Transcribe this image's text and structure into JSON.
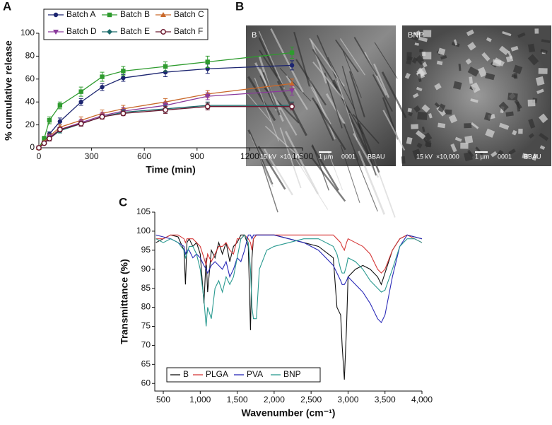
{
  "panel_labels": [
    "A",
    "B",
    "C"
  ],
  "images": [
    {
      "label": "B",
      "scale_text": [
        "15 kV",
        "×10,000",
        "1 µm",
        "0001",
        "BBAU"
      ]
    },
    {
      "label": "BNP",
      "scale_text": [
        "15 kV",
        "×10,000",
        "1 µm",
        "0001",
        "BBAU"
      ]
    }
  ],
  "chart_data": [
    {
      "type": "line",
      "x_label": "Time (min)",
      "y_label": "% cumulative release",
      "x": [
        0,
        30,
        60,
        120,
        240,
        360,
        480,
        720,
        960,
        1440
      ],
      "xlim": [
        0,
        1500
      ],
      "xticks": [
        0,
        300,
        600,
        900,
        1200,
        {
          "value": 1500,
          "label": "1,500"
        }
      ],
      "ylim": [
        0,
        100
      ],
      "yticks": [
        0,
        20,
        40,
        60,
        80,
        100
      ],
      "legend": "top-left",
      "series": [
        {
          "name": "Batch A",
          "color": "#1c2570",
          "marker": "circle",
          "values": [
            0,
            5,
            12,
            23,
            40,
            53,
            61,
            66,
            69,
            72
          ],
          "errors": [
            0,
            1,
            2,
            3,
            3,
            3,
            3,
            4,
            4,
            4
          ]
        },
        {
          "name": "Batch B",
          "color": "#2e9b2e",
          "marker": "square",
          "values": [
            0,
            8,
            24,
            37,
            49,
            62,
            67,
            71,
            75,
            83
          ],
          "errors": [
            0,
            2,
            3,
            3,
            4,
            4,
            4,
            4,
            5,
            5
          ]
        },
        {
          "name": "Batch C",
          "color": "#c9692a",
          "marker": "triangle-up",
          "values": [
            0,
            5,
            10,
            18,
            24,
            30,
            34,
            40,
            47,
            56
          ],
          "errors": [
            0,
            1,
            2,
            2,
            3,
            3,
            3,
            3,
            3,
            4
          ]
        },
        {
          "name": "Batch D",
          "color": "#8a3a9c",
          "marker": "triangle-down",
          "values": [
            0,
            4,
            9,
            16,
            22,
            28,
            32,
            37,
            45,
            50
          ],
          "errors": [
            0,
            1,
            2,
            2,
            3,
            3,
            3,
            3,
            3,
            4
          ]
        },
        {
          "name": "Batch E",
          "color": "#1a6a6a",
          "marker": "diamond",
          "values": [
            0,
            4,
            8,
            15,
            21,
            27,
            31,
            34,
            37,
            37
          ],
          "errors": [
            0,
            1,
            2,
            2,
            2,
            2,
            2,
            3,
            3,
            3
          ]
        },
        {
          "name": "Batch F",
          "color": "#6b1a30",
          "marker": "open-circle",
          "values": [
            0,
            4,
            8,
            16,
            21,
            27,
            30,
            33,
            36,
            36
          ],
          "errors": [
            0,
            1,
            2,
            2,
            2,
            2,
            2,
            3,
            3,
            3
          ]
        }
      ]
    },
    {
      "type": "line",
      "x_label": "Wavenumber (cm⁻¹)",
      "y_label": "Transmittance (%)",
      "x": [
        400,
        500,
        600,
        700,
        780,
        800,
        820,
        850,
        900,
        950,
        1000,
        1050,
        1080,
        1100,
        1150,
        1200,
        1250,
        1300,
        1350,
        1400,
        1450,
        1500,
        1550,
        1600,
        1650,
        1680,
        1700,
        1720,
        1760,
        1800,
        1900,
        2000,
        2200,
        2400,
        2600,
        2800,
        2850,
        2900,
        2920,
        2950,
        2980,
        3000,
        3100,
        3200,
        3300,
        3400,
        3450,
        3500,
        3600,
        3700,
        3800,
        3900,
        4000
      ],
      "xlim": [
        385,
        4000
      ],
      "xticks": [
        500,
        {
          "value": 1000,
          "label": "1,000"
        },
        {
          "value": 1500,
          "label": "1,500"
        },
        {
          "value": 2000,
          "label": "2,000"
        },
        {
          "value": 2500,
          "label": "2,500"
        },
        {
          "value": 3000,
          "label": "3,000"
        },
        {
          "value": 3500,
          "label": "3,500"
        },
        {
          "value": 4000,
          "label": "4,000"
        }
      ],
      "ylim": [
        58,
        105
      ],
      "yticks": [
        60,
        65,
        70,
        75,
        80,
        85,
        90,
        95,
        100,
        105
      ],
      "legend": "bottom-left",
      "series": [
        {
          "name": "B",
          "color": "#111111",
          "values": [
            97,
            98,
            99,
            98.5,
            95,
            86,
            97,
            98,
            96,
            97,
            94,
            81,
            93,
            84,
            95,
            93,
            97,
            94,
            97,
            92,
            96,
            97,
            99,
            99,
            96,
            74,
            93,
            98,
            99,
            99,
            99,
            99,
            98,
            97,
            96,
            93,
            80,
            78,
            70,
            61,
            75,
            88,
            90,
            91,
            90,
            88,
            86,
            89,
            95,
            98,
            99,
            98.5,
            98
          ]
        },
        {
          "name": "PLGA",
          "color": "#d63a3a",
          "values": [
            98,
            98,
            99,
            99,
            98,
            97,
            98,
            98,
            98,
            97,
            96,
            93,
            91,
            94,
            92,
            94,
            96,
            96,
            97,
            95,
            94,
            98,
            98,
            99,
            98,
            97,
            95,
            98,
            99,
            99,
            99,
            99,
            99,
            99,
            99,
            99,
            98,
            97,
            96,
            95,
            97,
            98,
            97,
            96,
            94,
            90,
            89,
            90,
            95,
            98,
            99,
            98,
            97
          ]
        },
        {
          "name": "PVA",
          "color": "#2a2ab8",
          "values": [
            99,
            98.5,
            98,
            97,
            96,
            94,
            95,
            95,
            93,
            94,
            93,
            91,
            90,
            89,
            91,
            92,
            91,
            90,
            92,
            88,
            90,
            93,
            92,
            95,
            99,
            99,
            98,
            99,
            99,
            99,
            99,
            99,
            98,
            97,
            95,
            91,
            89,
            87,
            86,
            86,
            87,
            88,
            86,
            84,
            81,
            77,
            76,
            78,
            88,
            96,
            99,
            98.5,
            98
          ]
        },
        {
          "name": "BNP",
          "color": "#2a9a90",
          "values": [
            98,
            97,
            98,
            97,
            95,
            93,
            94,
            96,
            96,
            94,
            90,
            82,
            75,
            80,
            77,
            85,
            87,
            84,
            88,
            86,
            88,
            93,
            98,
            99,
            97,
            90,
            80,
            77,
            77,
            90,
            95,
            96,
            97,
            98,
            98,
            96,
            94,
            90,
            89,
            89,
            91,
            93,
            92,
            90,
            87,
            85,
            84,
            84.5,
            90,
            96,
            98,
            98,
            97
          ]
        }
      ]
    }
  ]
}
